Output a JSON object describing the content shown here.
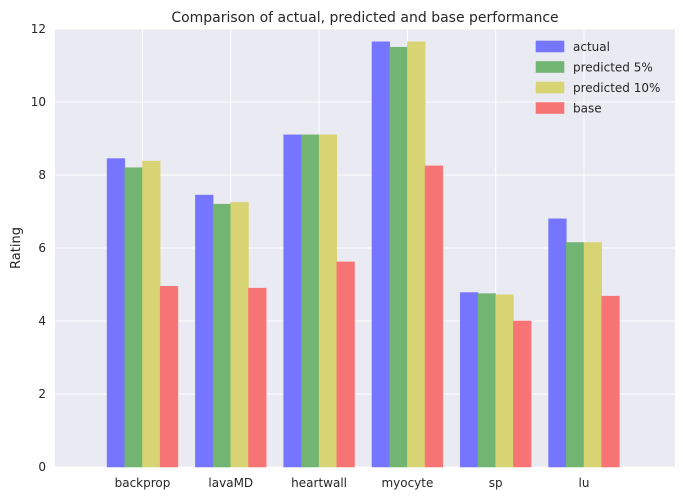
{
  "chart_data": {
    "type": "bar",
    "title": "Comparison of actual, predicted and base performance",
    "xlabel": "",
    "ylabel": "Rating",
    "categories": [
      "backprop",
      "lavaMD",
      "heartwall",
      "myocyte",
      "sp",
      "lu"
    ],
    "ylim": [
      0,
      12
    ],
    "yticks": [
      0,
      2,
      4,
      6,
      8,
      10,
      12
    ],
    "grid": true,
    "legend_position": "top-right",
    "background_color": "#eaeaf2",
    "grid_color": "#ffffff",
    "series": [
      {
        "name": "actual",
        "color": "#7575ff",
        "values": [
          8.45,
          7.45,
          9.1,
          11.65,
          4.78,
          6.8
        ]
      },
      {
        "name": "predicted 5%",
        "color": "#72b472",
        "values": [
          8.2,
          7.2,
          9.1,
          11.5,
          4.75,
          6.15
        ]
      },
      {
        "name": "predicted 10%",
        "color": "#d8d473",
        "values": [
          8.38,
          7.25,
          9.1,
          11.65,
          4.72,
          6.15
        ]
      },
      {
        "name": "base",
        "color": "#f77474",
        "values": [
          4.95,
          4.9,
          5.62,
          8.25,
          4.0,
          4.68
        ]
      }
    ]
  }
}
